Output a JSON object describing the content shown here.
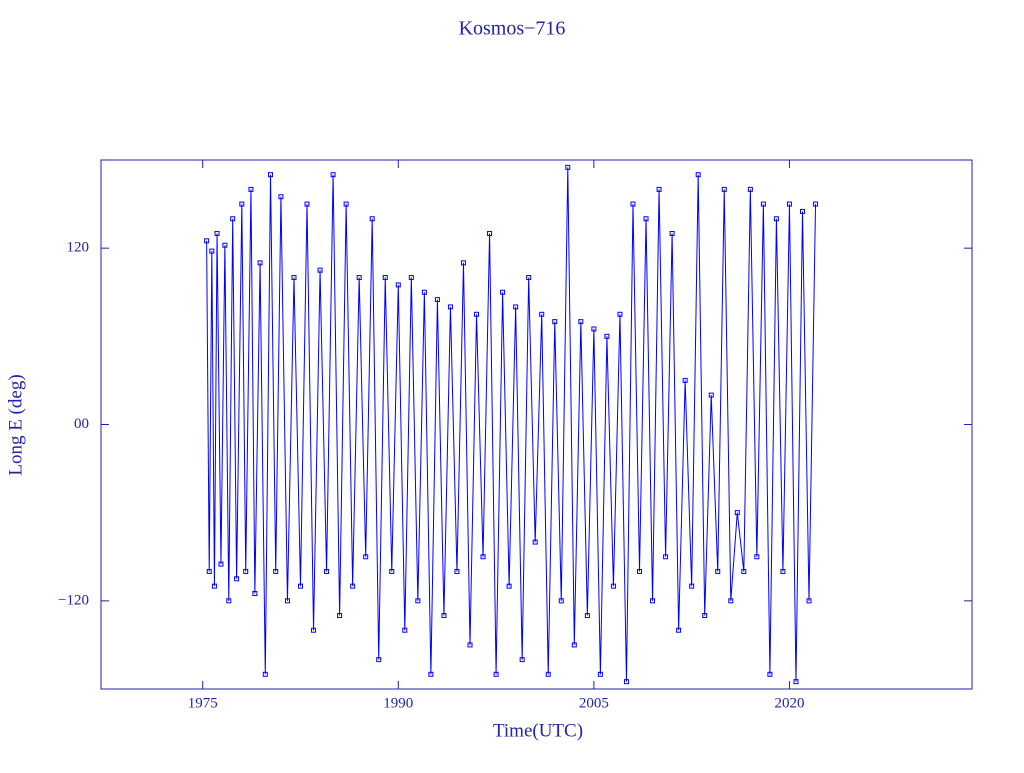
{
  "chart_data": {
    "type": "line",
    "title": "Kosmos−716",
    "x_label": "Time(UTC)",
    "y_label": "Long E (deg)",
    "xlim": [
      1967.2,
      2034
    ],
    "ylim": [
      -180,
      180
    ],
    "xticks": [
      1975,
      1990,
      2005,
      2020
    ],
    "yticks": [
      {
        "value": -120,
        "label": "−120"
      },
      {
        "value": 0,
        "label": "00"
      },
      120
    ],
    "series": [
      {
        "color": "#0000ff",
        "x": [
          1975.3,
          1975.5,
          1975.7,
          1975.9,
          1976.1,
          1976.4,
          1976.7,
          1977.0,
          1977.3,
          1977.6,
          1978.0,
          1978.3,
          1978.7,
          1979.0,
          1979.4,
          1979.8,
          1980.2,
          1980.6,
          1981.0,
          1981.5,
          1982.0,
          1982.5,
          1983.0,
          1983.5,
          1984.0,
          1984.5,
          1985.0,
          1985.5,
          1986.0,
          1986.5,
          1987.0,
          1987.5,
          1988.0,
          1988.5,
          1989.0,
          1989.5,
          1990.0,
          1990.5,
          1991.0,
          1991.5,
          1992.0,
          1992.5,
          1993.0,
          1993.5,
          1994.0,
          1994.5,
          1995.0,
          1995.5,
          1996.0,
          1996.5,
          1997.0,
          1997.5,
          1998.0,
          1998.5,
          1999.0,
          1999.5,
          2000.0,
          2000.5,
          2001.0,
          2001.5,
          2002.0,
          2002.5,
          2003.0,
          2003.5,
          2004.0,
          2004.5,
          2005.0,
          2005.5,
          2006.0,
          2006.5,
          2007.0,
          2007.5,
          2008.0,
          2008.5,
          2009.0,
          2009.5,
          2010.0,
          2010.5,
          2011.0,
          2011.5,
          2012.0,
          2012.5,
          2013.0,
          2013.5,
          2014.0,
          2014.5,
          2015.0,
          2015.5,
          2016.0,
          2016.5,
          2017.0,
          2017.5,
          2018.0,
          2018.5,
          2019.0,
          2019.5,
          2020.0,
          2020.5,
          2021.0,
          2021.5,
          2022.0
        ],
        "values": [
          125,
          -100,
          118,
          -110,
          130,
          -95,
          122,
          -120,
          140,
          -105,
          150,
          -100,
          160,
          -115,
          110,
          -170,
          170,
          -100,
          155,
          -120,
          100,
          -110,
          150,
          -140,
          105,
          -100,
          170,
          -130,
          150,
          -110,
          100,
          -90,
          140,
          -160,
          100,
          -100,
          95,
          -140,
          100,
          -120,
          90,
          -170,
          85,
          -130,
          80,
          -100,
          110,
          -150,
          75,
          -90,
          130,
          -170,
          90,
          -110,
          80,
          -160,
          100,
          -80,
          75,
          -170,
          70,
          -120,
          175,
          -150,
          70,
          -130,
          65,
          -170,
          60,
          -110,
          75,
          -175,
          150,
          -100,
          140,
          -120,
          160,
          -90,
          130,
          -140,
          30,
          -110,
          170,
          -130,
          20,
          -100,
          160,
          -120,
          -60,
          -100,
          160,
          -90,
          150,
          -170,
          140,
          -100,
          150,
          -175,
          145,
          -120,
          150
        ]
      }
    ]
  }
}
